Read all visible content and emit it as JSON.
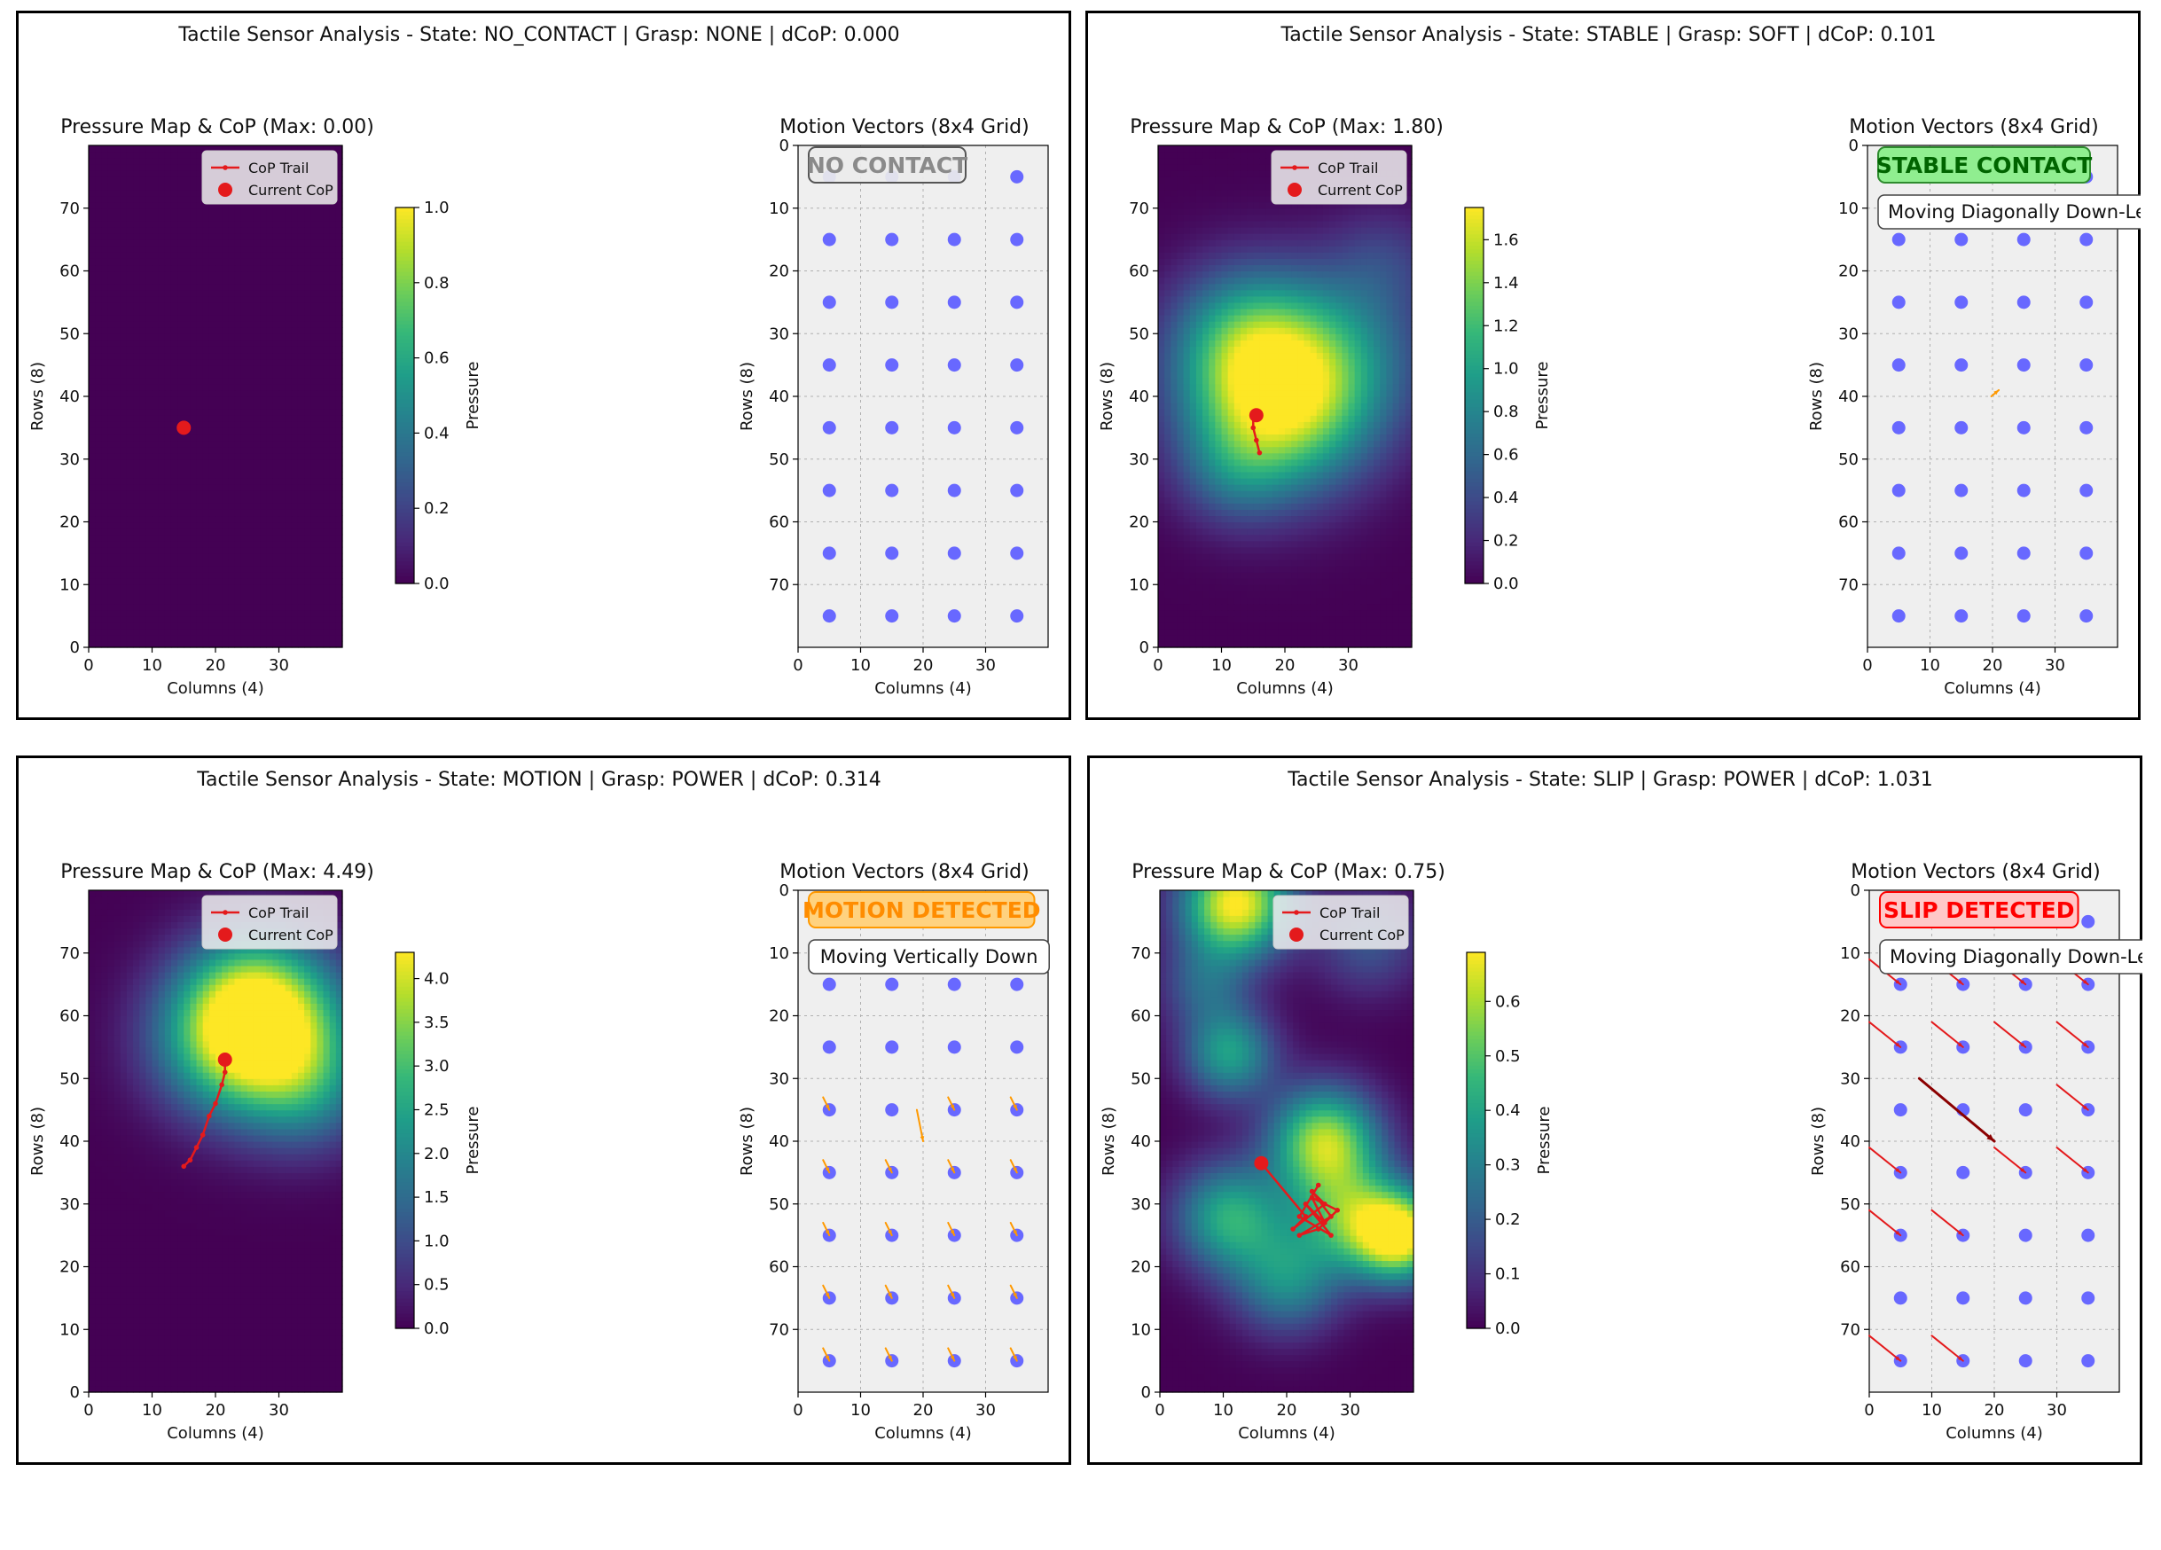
{
  "colors": {
    "viridis": [
      "#440154",
      "#482878",
      "#3e4989",
      "#31688e",
      "#26828e",
      "#1f9e89",
      "#35b779",
      "#6ece58",
      "#b5de2b",
      "#fde725"
    ],
    "cop": "#e41a1c",
    "taxel": "#6060ff",
    "vector_orange": "#ff9900",
    "vector_red": "#e41a1c",
    "vector_darkred": "#8b0000",
    "grid_bg": "#efefef"
  },
  "common": {
    "pressure_xlabel": "Columns (4)",
    "pressure_ylabel": "Rows (8)",
    "colorbar_label": "Pressure",
    "legend_trail": "CoP Trail",
    "legend_current": "Current CoP",
    "motion_title": "Motion Vectors (8x4 Grid)",
    "motion_xlabel": "Columns (4)",
    "motion_ylabel": "Rows (8)",
    "pressure_xticks": [
      "0",
      "10",
      "20",
      "30"
    ],
    "pressure_yticks": [
      "0",
      "10",
      "20",
      "30",
      "40",
      "50",
      "60",
      "70"
    ],
    "motion_xticks": [
      "0",
      "10",
      "20",
      "30"
    ],
    "motion_yticks": [
      "0",
      "10",
      "20",
      "30",
      "40",
      "50",
      "60",
      "70"
    ]
  },
  "chart_data": [
    {
      "type": "heatmap",
      "title": "Tactile Sensor Analysis - State: NO_CONTACT | Grasp: NONE | dCoP: 0.000",
      "pressure_title": "Pressure Map & CoP (Max: 0.00)",
      "xlim": [
        0,
        40
      ],
      "ylim": [
        0,
        80
      ],
      "colorbar": {
        "min": 0,
        "max": 1.0,
        "ticks": [
          "0.0",
          "0.2",
          "0.4",
          "0.6",
          "0.8",
          "1.0"
        ]
      },
      "blobs": [],
      "cop_trail": [
        [
          15,
          35
        ]
      ],
      "current_cop": [
        15,
        35
      ],
      "status_badge": "NO CONTACT",
      "status_style": "none",
      "direction_label": "",
      "vectors": []
    },
    {
      "type": "heatmap",
      "title": "Tactile Sensor Analysis - State: STABLE | Grasp: SOFT | dCoP: 0.101",
      "pressure_title": "Pressure Map & CoP (Max: 1.80)",
      "xlim": [
        0,
        40
      ],
      "ylim": [
        0,
        80
      ],
      "colorbar": {
        "min": 0,
        "max": 1.75,
        "ticks": [
          "0.0",
          "0.2",
          "0.4",
          "0.6",
          "0.8",
          "1.0",
          "1.2",
          "1.4",
          "1.6"
        ]
      },
      "blobs": [
        [
          19,
          40,
          10,
          1.72
        ],
        [
          13,
          50,
          8,
          0.6
        ],
        [
          30,
          48,
          10,
          0.45
        ],
        [
          36,
          62,
          6,
          0.25
        ],
        [
          12,
          28,
          6,
          0.35
        ]
      ],
      "cop_trail": [
        [
          16,
          31
        ],
        [
          15.5,
          33
        ],
        [
          15,
          35
        ],
        [
          15,
          36.5
        ],
        [
          15.5,
          37
        ]
      ],
      "current_cop": [
        15.5,
        37
      ],
      "status_badge": "STABLE CONTACT",
      "status_style": "stable",
      "direction_label": "Moving Diagonally Down-Left",
      "vectors": [
        [
          21,
          39,
          -1.2,
          1.0,
          "orange"
        ]
      ]
    },
    {
      "type": "heatmap",
      "title": "Tactile Sensor Analysis - State: MOTION | Grasp: POWER | dCoP: 0.314",
      "pressure_title": "Pressure Map & CoP (Max: 4.49)",
      "xlim": [
        0,
        40
      ],
      "ylim": [
        0,
        80
      ],
      "colorbar": {
        "min": 0,
        "max": 4.3,
        "ticks": [
          "0.0",
          "0.5",
          "1.0",
          "1.5",
          "2.0",
          "2.5",
          "3.0",
          "3.5",
          "4.0"
        ]
      },
      "blobs": [
        [
          28,
          58,
          9,
          4.3
        ],
        [
          20,
          56,
          8,
          1.4
        ],
        [
          35,
          48,
          7,
          1.2
        ],
        [
          25,
          64,
          7,
          1.0
        ]
      ],
      "cop_trail": [
        [
          15,
          36
        ],
        [
          16,
          37
        ],
        [
          17,
          39
        ],
        [
          18,
          41
        ],
        [
          19,
          44
        ],
        [
          20,
          46
        ],
        [
          21,
          49
        ],
        [
          21.5,
          51
        ],
        [
          21.5,
          53
        ]
      ],
      "current_cop": [
        21.5,
        53
      ],
      "status_badge": "MOTION DETECTED",
      "status_style": "motion",
      "direction_label": "Moving Vertically Down",
      "vectors": [
        [
          20,
          40,
          -1,
          -5,
          "orange"
        ],
        [
          5,
          35,
          -1,
          -2,
          "orange"
        ],
        [
          25,
          35,
          -1,
          -2,
          "orange"
        ],
        [
          35,
          35,
          -1,
          -2,
          "orange"
        ],
        [
          5,
          45,
          -1,
          -2,
          "orange"
        ],
        [
          15,
          45,
          -1,
          -2,
          "orange"
        ],
        [
          25,
          45,
          -1,
          -2,
          "orange"
        ],
        [
          35,
          45,
          -1,
          -2,
          "orange"
        ],
        [
          5,
          55,
          -1,
          -2,
          "orange"
        ],
        [
          15,
          55,
          -1,
          -2,
          "orange"
        ],
        [
          25,
          55,
          -1,
          -2,
          "orange"
        ],
        [
          35,
          55,
          -1,
          -2,
          "orange"
        ],
        [
          5,
          65,
          -1,
          -2,
          "orange"
        ],
        [
          15,
          65,
          -1,
          -2,
          "orange"
        ],
        [
          25,
          65,
          -1,
          -2,
          "orange"
        ],
        [
          35,
          65,
          -1,
          -2,
          "orange"
        ],
        [
          5,
          75,
          -1,
          -2,
          "orange"
        ],
        [
          15,
          75,
          -1,
          -2,
          "orange"
        ],
        [
          25,
          75,
          -1,
          -2,
          "orange"
        ],
        [
          35,
          75,
          -1,
          -2,
          "orange"
        ]
      ]
    },
    {
      "type": "heatmap",
      "title": "Tactile Sensor Analysis - State: SLIP | Grasp: POWER | dCoP: 1.031",
      "pressure_title": "Pressure Map & CoP (Max: 0.75)",
      "xlim": [
        0,
        40
      ],
      "ylim": [
        0,
        80
      ],
      "colorbar": {
        "min": 0,
        "max": 0.69,
        "ticks": [
          "0.0",
          "0.1",
          "0.2",
          "0.3",
          "0.4",
          "0.5",
          "0.6"
        ]
      },
      "blobs": [
        [
          12,
          78,
          6,
          0.7
        ],
        [
          38,
          25,
          5,
          0.68
        ],
        [
          26,
          40,
          6,
          0.6
        ],
        [
          11,
          54,
          5,
          0.38
        ],
        [
          11,
          28,
          6,
          0.42
        ],
        [
          30,
          28,
          6,
          0.4
        ],
        [
          20,
          18,
          6,
          0.32
        ],
        [
          33,
          72,
          6,
          0.18
        ],
        [
          7,
          65,
          5,
          0.2
        ]
      ],
      "cop_trail": [
        [
          16,
          36.5
        ],
        [
          23,
          28
        ],
        [
          21,
          26
        ],
        [
          26,
          30
        ],
        [
          24,
          32
        ],
        [
          27,
          28
        ],
        [
          22,
          25
        ],
        [
          25,
          26
        ],
        [
          28,
          29
        ],
        [
          24,
          31
        ],
        [
          26,
          27
        ],
        [
          23,
          30
        ],
        [
          27,
          25
        ],
        [
          22,
          28
        ],
        [
          25,
          33
        ]
      ],
      "current_cop": [
        16,
        36.5
      ],
      "status_badge": "SLIP DETECTED",
      "status_style": "slip",
      "direction_label": "Moving Diagonally Down-Left",
      "vectors": [
        [
          5,
          15,
          -5,
          -4,
          "red"
        ],
        [
          15,
          15,
          -5,
          -4,
          "red"
        ],
        [
          25,
          15,
          -5,
          -4,
          "red"
        ],
        [
          35,
          15,
          -5,
          -4,
          "red"
        ],
        [
          5,
          25,
          -5,
          -4,
          "red"
        ],
        [
          15,
          25,
          -5,
          -4,
          "red"
        ],
        [
          25,
          25,
          -5,
          -4,
          "red"
        ],
        [
          35,
          25,
          -5,
          -4,
          "red"
        ],
        [
          20,
          40,
          -12,
          -10,
          "darkred"
        ],
        [
          35,
          35,
          -5,
          -4,
          "red"
        ],
        [
          5,
          45,
          -5,
          -4,
          "red"
        ],
        [
          25,
          45,
          -5,
          -4,
          "red"
        ],
        [
          35,
          45,
          -5,
          -4,
          "red"
        ],
        [
          5,
          55,
          -5,
          -4,
          "red"
        ],
        [
          15,
          55,
          -5,
          -4,
          "red"
        ],
        [
          5,
          75,
          -5,
          -4,
          "red"
        ],
        [
          15,
          75,
          -5,
          -4,
          "red"
        ]
      ]
    }
  ]
}
